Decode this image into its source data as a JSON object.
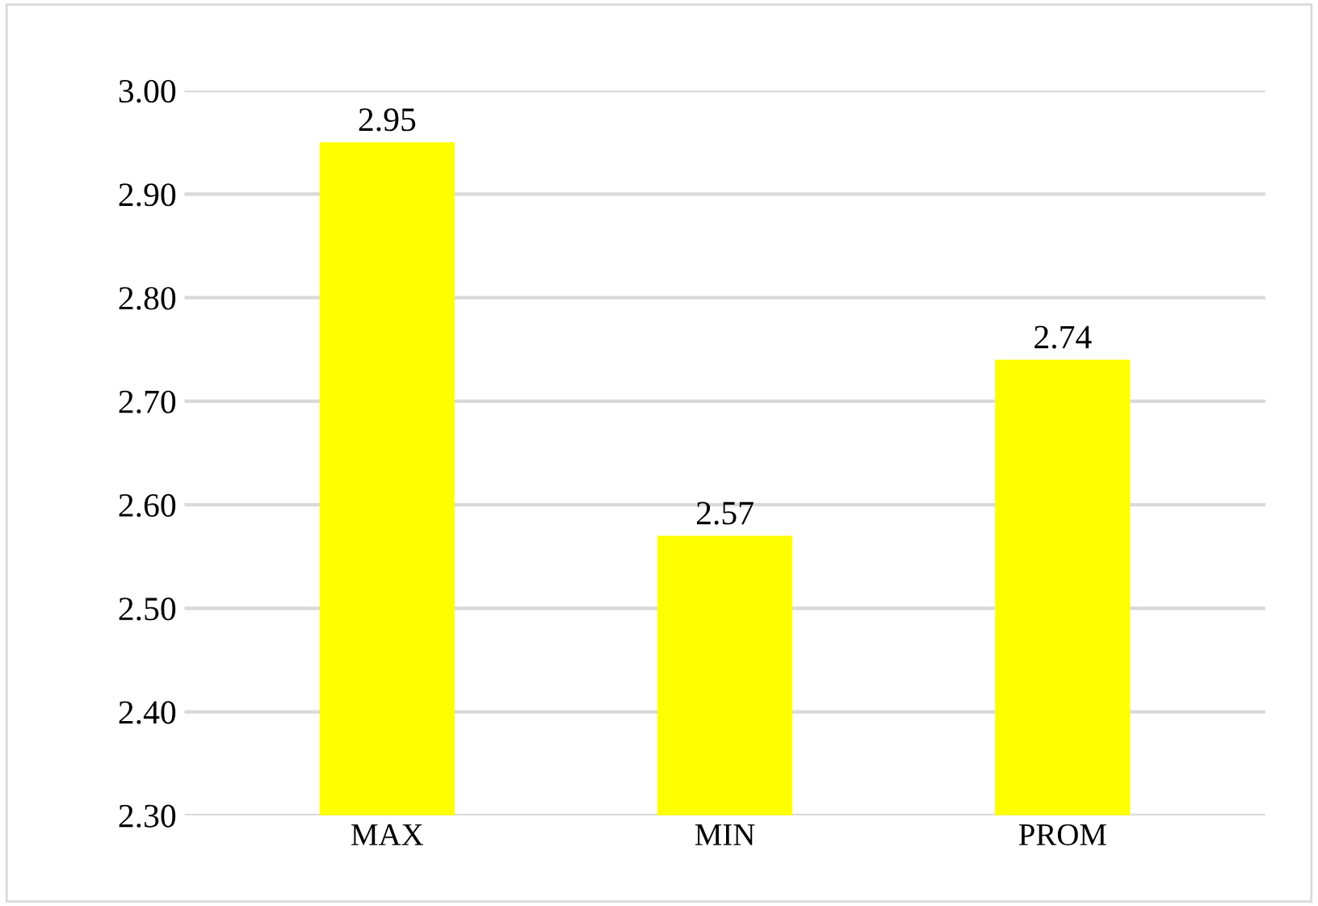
{
  "chart_data": {
    "type": "bar",
    "categories": [
      "MAX",
      "MIN",
      "PROM"
    ],
    "values": [
      2.95,
      2.57,
      2.74
    ],
    "color": "#ffff00",
    "ylim": [
      2.3,
      3.0
    ],
    "yticks": [
      {
        "value": 2.3,
        "label": "2.30"
      },
      {
        "value": 2.4,
        "label": "2.40"
      },
      {
        "value": 2.5,
        "label": "2.50"
      },
      {
        "value": 2.6,
        "label": "2.60"
      },
      {
        "value": 2.7,
        "label": "2.70"
      },
      {
        "value": 2.8,
        "label": "2.80"
      },
      {
        "value": 2.9,
        "label": "2.90"
      },
      {
        "value": 3.0,
        "label": "3.00"
      }
    ],
    "grid": "y",
    "data_labels": true
  }
}
